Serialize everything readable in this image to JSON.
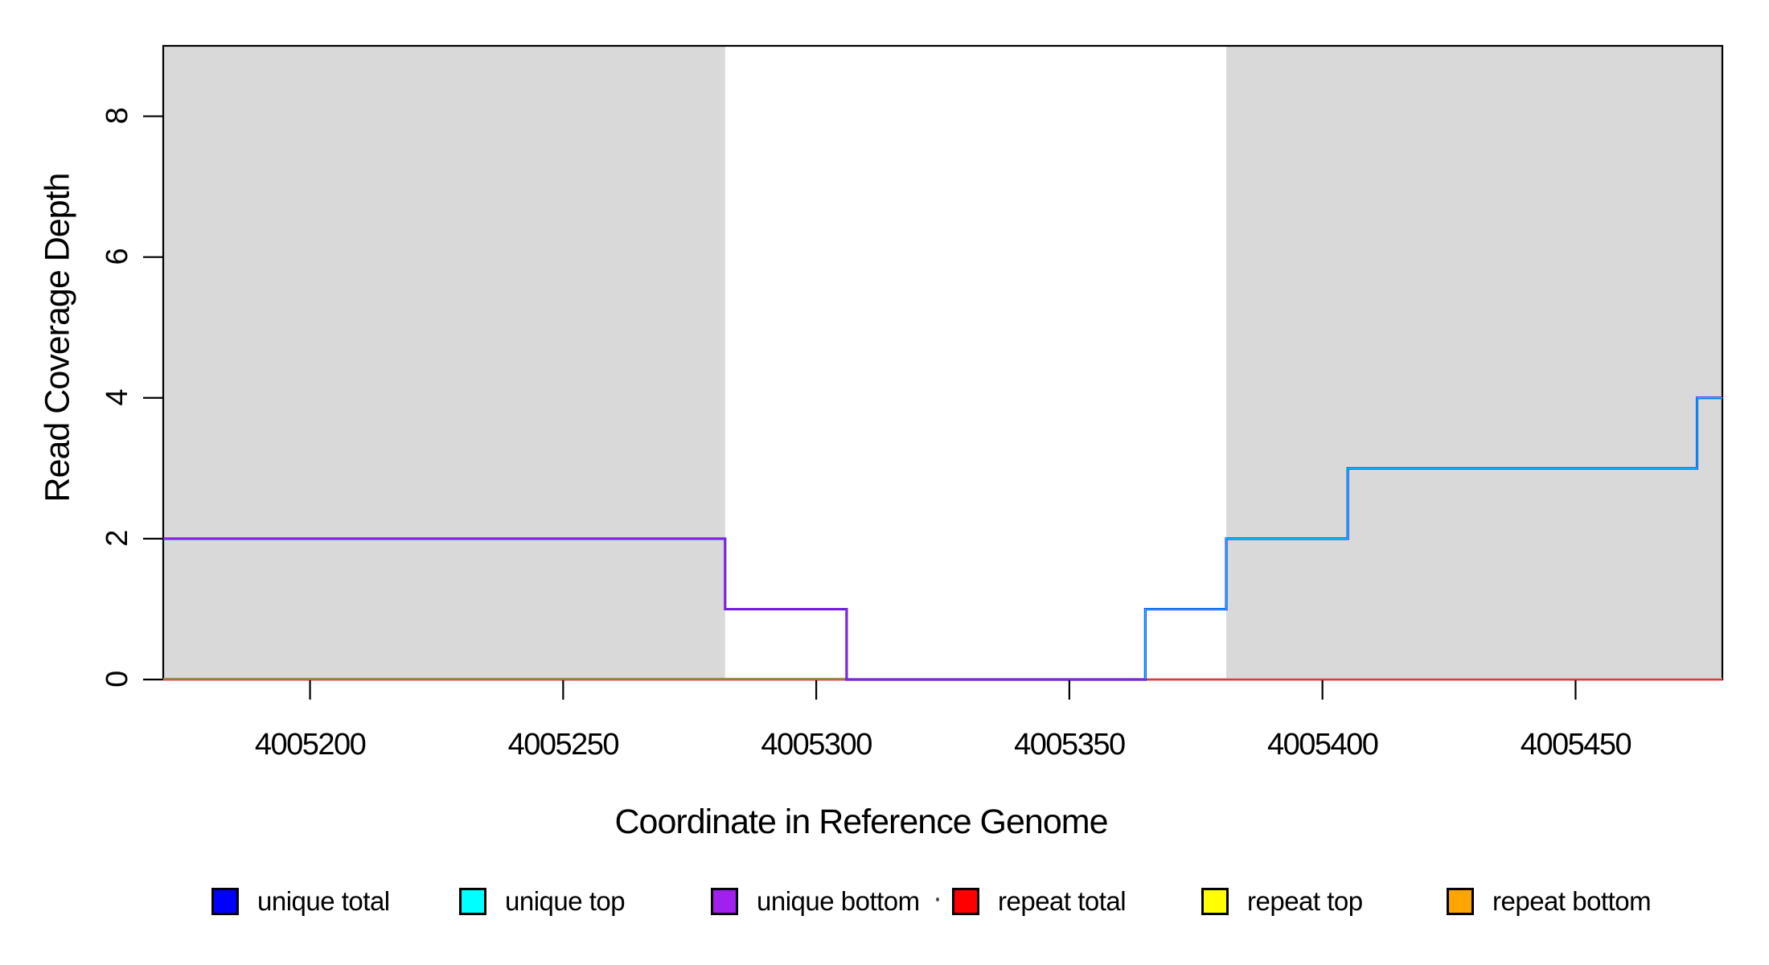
{
  "figure": {
    "background_color": "#ffffff",
    "plot_region_color": "#ffffff"
  },
  "chart_data": {
    "type": "line",
    "subtype": "step-coverage-plot",
    "title": "",
    "xlabel": "Coordinate in Reference Genome",
    "ylabel": "Read Coverage Depth",
    "xlim": [
      4005171,
      4005479
    ],
    "ylim": [
      0,
      9
    ],
    "x_ticks": [
      4005200,
      4005250,
      4005300,
      4005350,
      4005400,
      4005450
    ],
    "y_ticks": [
      0,
      2,
      4,
      6,
      8
    ],
    "grid": "off",
    "legend_position": "bottom",
    "shaded_regions": [
      {
        "name": "repeat-region-left",
        "x0": 4005171,
        "x1": 4005282,
        "color": "#d9d9d9"
      },
      {
        "name": "repeat-region-right",
        "x0": 4005381,
        "x1": 4005479,
        "color": "#d9d9d9"
      }
    ],
    "series": [
      {
        "name": "unique total",
        "color": "#0000ff",
        "points": [
          [
            4005171,
            2
          ],
          [
            4005282,
            2
          ],
          [
            4005282,
            1
          ],
          [
            4005306,
            1
          ],
          [
            4005306,
            0
          ],
          [
            4005365,
            0
          ],
          [
            4005365,
            1
          ],
          [
            4005381,
            1
          ],
          [
            4005381,
            2
          ],
          [
            4005405,
            2
          ],
          [
            4005405,
            3
          ],
          [
            4005474,
            3
          ],
          [
            4005474,
            4
          ],
          [
            4005479,
            4
          ]
        ]
      },
      {
        "name": "unique top",
        "color": "#00ffff",
        "points": [
          [
            4005365,
            0
          ],
          [
            4005365,
            1
          ],
          [
            4005381,
            1
          ],
          [
            4005381,
            2
          ],
          [
            4005405,
            2
          ],
          [
            4005405,
            3
          ],
          [
            4005474,
            3
          ],
          [
            4005474,
            4
          ],
          [
            4005479,
            4
          ]
        ]
      },
      {
        "name": "unique bottom",
        "color": "#a020f0",
        "points": [
          [
            4005171,
            2
          ],
          [
            4005282,
            2
          ],
          [
            4005282,
            1
          ],
          [
            4005306,
            1
          ],
          [
            4005306,
            0
          ],
          [
            4005365,
            0
          ]
        ]
      },
      {
        "name": "repeat total",
        "color": "#ff0000",
        "points": [
          [
            4005171,
            0
          ],
          [
            4005479,
            0
          ]
        ]
      },
      {
        "name": "repeat top",
        "color": "#ffff00",
        "points": [
          [
            4005171,
            0
          ],
          [
            4005479,
            0
          ]
        ]
      },
      {
        "name": "repeat bottom",
        "color": "#ffa500",
        "points": [
          [
            4005171,
            0
          ],
          [
            4005479,
            0
          ]
        ]
      }
    ],
    "appearance": {
      "box_color": "#000000",
      "baseline_left_overlap_color": "#8f9743",
      "baseline_left_overlap_until": 4005306,
      "baseline_fringe_color": "#ef9f9f",
      "baseline_core_color": "#c63333",
      "unique_total_render": {
        "color": "#0d0dea",
        "width": 3.0
      },
      "unique_top_render": {
        "color": "#00dfff",
        "width": 1.5
      },
      "unique_bottom_render": {
        "color": "#8a1fe0",
        "width": 2.3
      }
    }
  },
  "axis": {
    "x_title": "Coordinate in Reference Genome",
    "y_title": "Read Coverage Depth"
  },
  "legend": {
    "items": [
      {
        "label": "unique total",
        "color": "#0000ff"
      },
      {
        "label": "unique top",
        "color": "#00ffff"
      },
      {
        "label": "unique bottom",
        "color": "#a020f0"
      },
      {
        "label": "repeat total",
        "color": "#ff0000"
      },
      {
        "label": "repeat top",
        "color": "#ffff00"
      },
      {
        "label": "repeat bottom",
        "color": "#ffa500"
      }
    ]
  }
}
